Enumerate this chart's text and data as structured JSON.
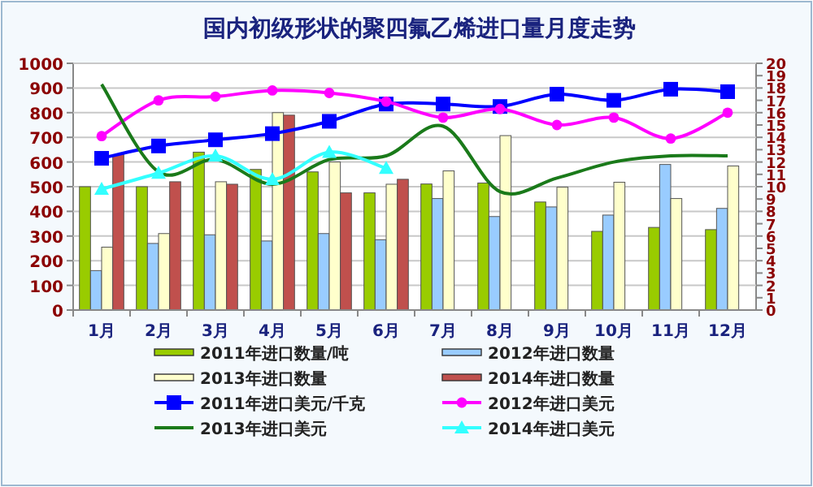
{
  "chart_data": {
    "type": "bar",
    "title": "国内初级形状的聚四氟乙烯进口量月度走势",
    "categories": [
      "1月",
      "2月",
      "3月",
      "4月",
      "5月",
      "6月",
      "7月",
      "8月",
      "9月",
      "10月",
      "11月",
      "12月"
    ],
    "ylim": [
      0,
      1000
    ],
    "yticks": [
      0,
      100,
      200,
      300,
      400,
      500,
      600,
      700,
      800,
      900,
      1000
    ],
    "y2lim": [
      0,
      20
    ],
    "y2ticks": [
      0,
      1,
      2,
      3,
      4,
      5,
      6,
      7,
      8,
      9,
      10,
      11,
      12,
      13,
      14,
      15,
      16,
      17,
      18,
      19,
      20
    ],
    "grid": "y",
    "legend": "bottom",
    "series": [
      {
        "name": "2011年进口数量/吨",
        "color": "#99cc00",
        "values": [
          500,
          500,
          640,
          570,
          560,
          475,
          511,
          515,
          438,
          319,
          335,
          326
        ]
      },
      {
        "name": "2012年进口数量",
        "color": "#99ccff",
        "values": [
          160,
          270,
          305,
          280,
          310,
          285,
          452,
          379,
          418,
          385,
          590,
          412
        ]
      },
      {
        "name": "2013年进口数量",
        "color": "#ffffcc",
        "values": [
          255,
          310,
          520,
          800,
          600,
          510,
          564,
          707,
          498,
          518,
          452,
          584
        ]
      },
      {
        "name": "2014年进口数量",
        "color": "#c0504d",
        "values": [
          630,
          520,
          510,
          790,
          475,
          530,
          null,
          null,
          null,
          null,
          null,
          null
        ]
      },
      {
        "name": "2011年进口美元/千克",
        "type": "line",
        "axis": "y2",
        "marker": "square",
        "color": "#0000ff",
        "values": [
          12.3,
          13.3,
          13.8,
          14.3,
          15.3,
          16.7,
          16.7,
          16.5,
          17.5,
          17.0,
          17.9,
          17.7
        ]
      },
      {
        "name": "2012年进口美元",
        "type": "line",
        "axis": "y2",
        "marker": "circle",
        "color": "#ff00ff",
        "values": [
          14.1,
          17.0,
          17.3,
          17.8,
          17.6,
          16.9,
          15.6,
          16.3,
          15.0,
          15.6,
          13.9,
          16.0
        ]
      },
      {
        "name": "2013年进口美元",
        "type": "line",
        "axis": "y2",
        "marker": "none",
        "color": "#1a7a1a",
        "values": [
          18.3,
          11.2,
          12.2,
          10.2,
          12.2,
          12.5,
          14.9,
          9.6,
          10.7,
          12.0,
          12.5,
          12.5
        ]
      },
      {
        "name": "2014年进口美元",
        "type": "line",
        "axis": "y2",
        "marker": "triangle",
        "color": "#33ffff",
        "values": [
          9.8,
          11.1,
          12.5,
          10.6,
          12.8,
          11.5,
          null,
          null,
          null,
          null,
          null,
          null
        ]
      }
    ]
  }
}
